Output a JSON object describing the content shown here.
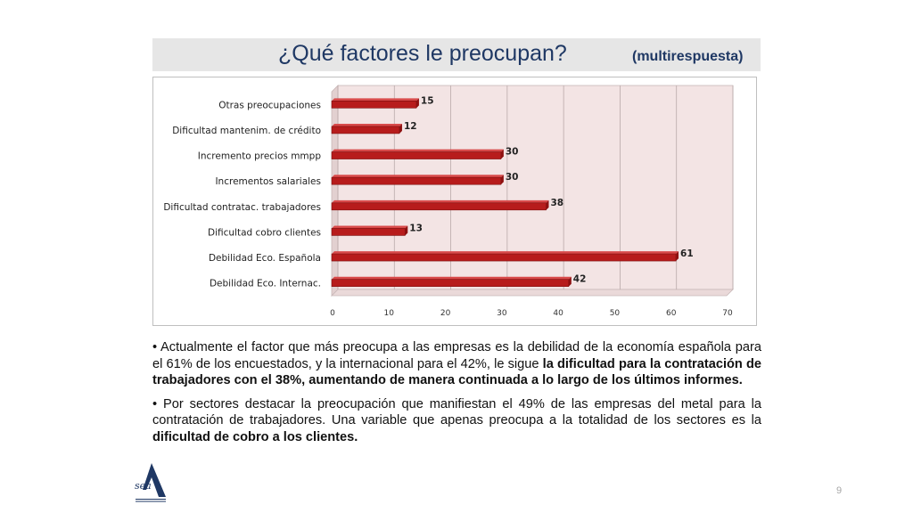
{
  "slide": {
    "title": "¿Qué factores le preocupan?",
    "subtitle": "(multirespuesta)",
    "page_number": "9",
    "logo_text": "sea"
  },
  "chart_data": {
    "type": "bar",
    "orientation": "horizontal",
    "categories": [
      "Otras preocupaciones",
      "Dificultad mantenim. de crédito",
      "Incremento precios mmpp",
      "Incrementos salariales",
      "Dificultad contratac. trabajadores",
      "Dificultad cobro clientes",
      "Debilidad Eco. Española",
      "Debilidad Eco. Internac."
    ],
    "values": [
      15,
      12,
      30,
      30,
      38,
      13,
      61,
      42
    ],
    "xlim": [
      0,
      70
    ],
    "xticks": [
      "0",
      "10",
      "20",
      "30",
      "40",
      "50",
      "60",
      "70"
    ],
    "grid": true,
    "bar_color": "#b71c1c",
    "wall_color": "#f3e4e4"
  },
  "body": {
    "p1_a": "• Actualmente el factor que más preocupa a las empresas es la debilidad de la economía española para el 61% de los encuestados, y la internacional para el 42%,  le sigue ",
    "p1_b": "la dificultad para la contratación de trabajadores con el 38%, aumentando de manera continuada a lo largo de los últimos informes.",
    "p2_a": "• Por sectores destacar la preocupación que manifiestan el 49% de las empresas del metal para la contratación de trabajadores. Una variable que apenas preocupa a la totalidad de los sectores es la ",
    "p2_b": "dificultad de cobro a los clientes."
  }
}
